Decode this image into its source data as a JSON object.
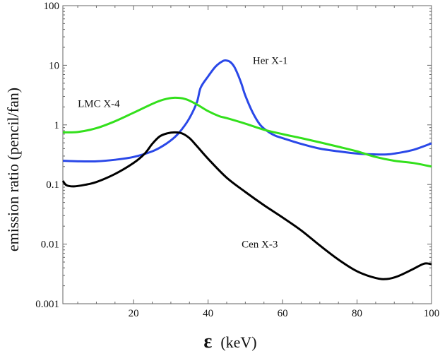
{
  "chart_data": {
    "type": "line",
    "title": "",
    "xlabel_symbol": "ε",
    "xlabel_unit": "(keV)",
    "ylabel": "emission ratio (pencil/fan)",
    "xscale": "linear",
    "yscale": "log",
    "xlim": [
      1,
      100
    ],
    "ylim": [
      0.001,
      100
    ],
    "grid": false,
    "x_ticks": [
      20,
      40,
      60,
      80,
      100
    ],
    "x_tick_labels": [
      "20",
      "40",
      "60",
      "80",
      "100"
    ],
    "y_ticks": [
      0.001,
      0.01,
      0.1,
      1,
      10,
      100
    ],
    "y_tick_labels": [
      "0.001",
      "0.01",
      "0.1",
      "1",
      "10",
      "100"
    ],
    "series": [
      {
        "name": "Her X-1",
        "color": "#2a48e8",
        "label_at": [
          52,
          10.5
        ],
        "points": [
          [
            1,
            0.25
          ],
          [
            5,
            0.245
          ],
          [
            10,
            0.245
          ],
          [
            15,
            0.26
          ],
          [
            20,
            0.29
          ],
          [
            25,
            0.36
          ],
          [
            28,
            0.45
          ],
          [
            31,
            0.62
          ],
          [
            33,
            0.85
          ],
          [
            35,
            1.3
          ],
          [
            37,
            2.4
          ],
          [
            38,
            4.2
          ],
          [
            40,
            6.5
          ],
          [
            42,
            9.5
          ],
          [
            44,
            11.8
          ],
          [
            45,
            12
          ],
          [
            46,
            11.3
          ],
          [
            47,
            9.5
          ],
          [
            48,
            7
          ],
          [
            49,
            4.8
          ],
          [
            50,
            3.1
          ],
          [
            52,
            1.6
          ],
          [
            54,
            1.0
          ],
          [
            56,
            0.78
          ],
          [
            58,
            0.66
          ],
          [
            60,
            0.6
          ],
          [
            65,
            0.48
          ],
          [
            70,
            0.4
          ],
          [
            75,
            0.36
          ],
          [
            80,
            0.33
          ],
          [
            85,
            0.32
          ],
          [
            88,
            0.32
          ],
          [
            90,
            0.33
          ],
          [
            95,
            0.38
          ],
          [
            100,
            0.49
          ]
        ]
      },
      {
        "name": "LMC X-4",
        "color": "#33e01c",
        "label_at": [
          5,
          2.0
        ],
        "points": [
          [
            1,
            0.75
          ],
          [
            5,
            0.76
          ],
          [
            10,
            0.88
          ],
          [
            15,
            1.15
          ],
          [
            20,
            1.6
          ],
          [
            25,
            2.25
          ],
          [
            28,
            2.65
          ],
          [
            31,
            2.85
          ],
          [
            34,
            2.7
          ],
          [
            37,
            2.2
          ],
          [
            40,
            1.7
          ],
          [
            43,
            1.4
          ],
          [
            45,
            1.3
          ],
          [
            50,
            1.05
          ],
          [
            55,
            0.83
          ],
          [
            60,
            0.7
          ],
          [
            65,
            0.6
          ],
          [
            70,
            0.51
          ],
          [
            75,
            0.43
          ],
          [
            80,
            0.36
          ],
          [
            85,
            0.29
          ],
          [
            90,
            0.25
          ],
          [
            95,
            0.23
          ],
          [
            100,
            0.2
          ]
        ]
      },
      {
        "name": "Cen X-3",
        "color": "#000000",
        "label_at": [
          49,
          0.0088
        ],
        "points": [
          [
            1,
            0.115
          ],
          [
            2,
            0.097
          ],
          [
            4,
            0.093
          ],
          [
            7,
            0.099
          ],
          [
            10,
            0.11
          ],
          [
            15,
            0.15
          ],
          [
            20,
            0.23
          ],
          [
            23,
            0.33
          ],
          [
            25,
            0.48
          ],
          [
            27,
            0.64
          ],
          [
            29,
            0.72
          ],
          [
            31,
            0.75
          ],
          [
            33,
            0.72
          ],
          [
            35,
            0.6
          ],
          [
            37,
            0.44
          ],
          [
            40,
            0.27
          ],
          [
            45,
            0.13
          ],
          [
            50,
            0.075
          ],
          [
            55,
            0.045
          ],
          [
            60,
            0.028
          ],
          [
            65,
            0.017
          ],
          [
            70,
            0.0095
          ],
          [
            75,
            0.0055
          ],
          [
            80,
            0.0035
          ],
          [
            85,
            0.0027
          ],
          [
            88,
            0.0026
          ],
          [
            91,
            0.0029
          ],
          [
            95,
            0.0038
          ],
          [
            98,
            0.0047
          ],
          [
            100,
            0.0046
          ]
        ]
      }
    ]
  }
}
